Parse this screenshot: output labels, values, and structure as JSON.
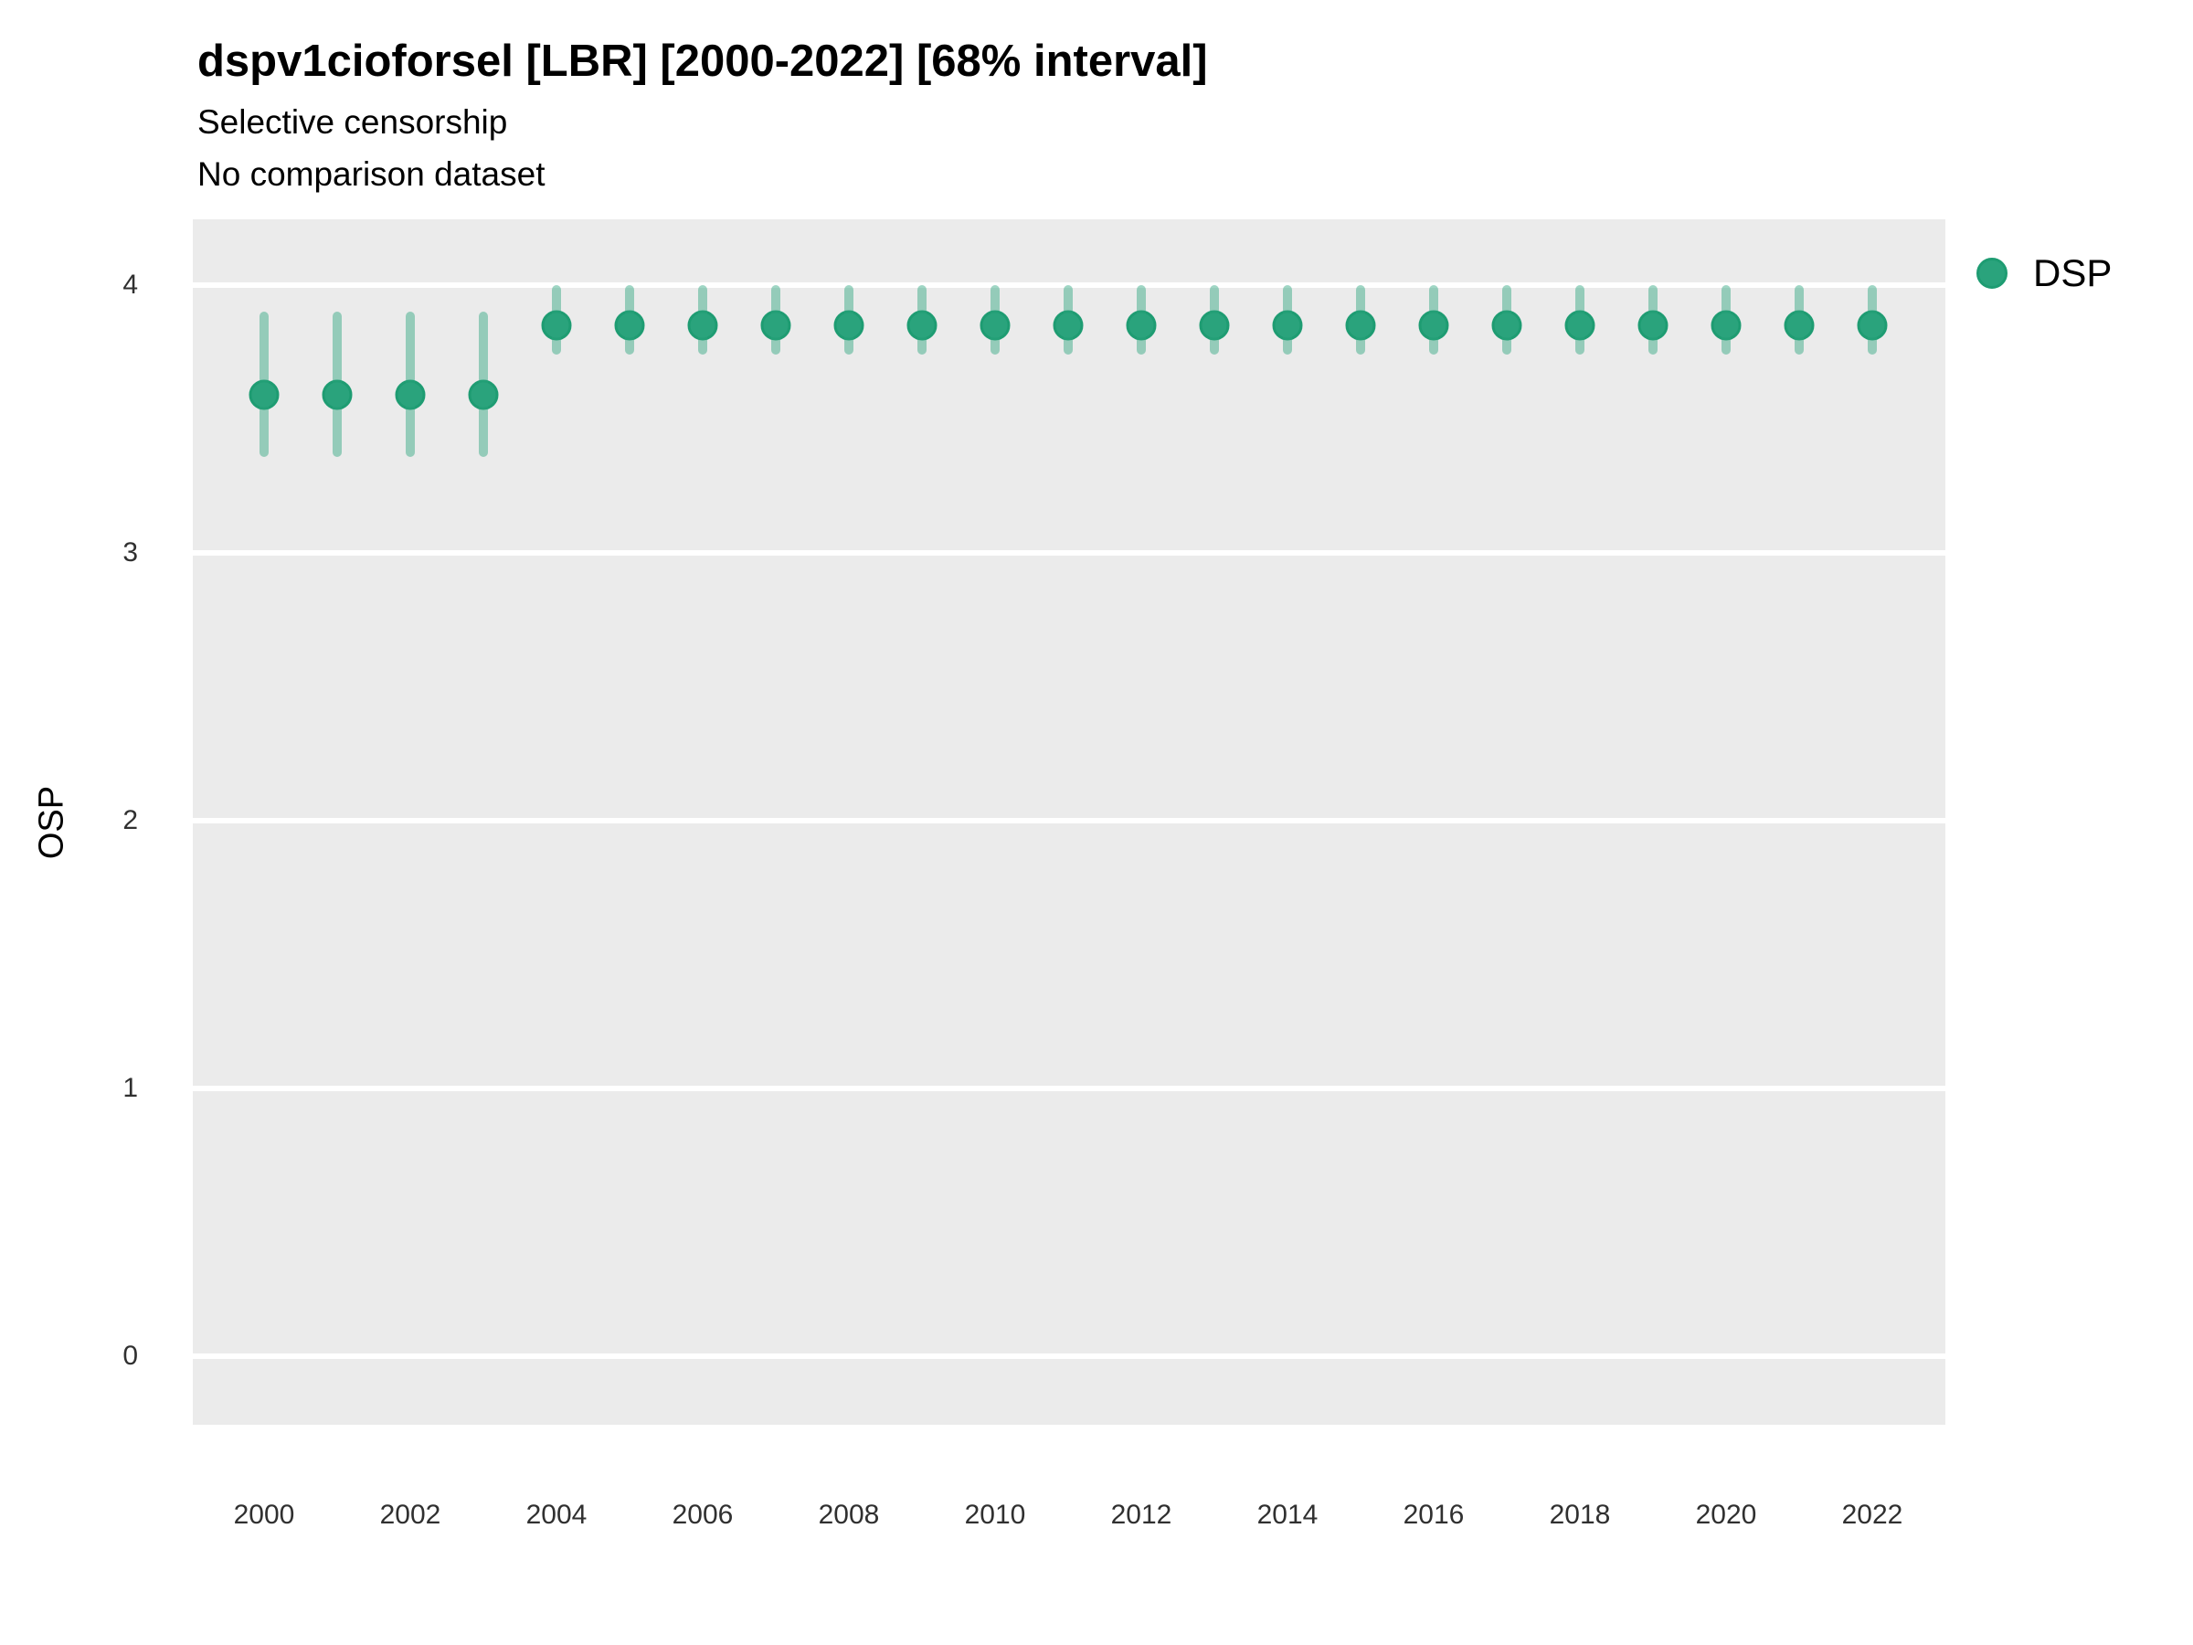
{
  "chart": {
    "title": "dspv1cioforsel [LBR] [2000-2022] [68% interval]",
    "subtitle_line1": "Selective censorship",
    "subtitle_line2": "No comparison dataset",
    "y_axis_title": "OSP",
    "legend_label": "DSP"
  },
  "chart_data": {
    "type": "scatter",
    "title": "dspv1cioforsel [LBR] [2000-2022] [68% interval]",
    "subtitle": [
      "Selective censorship",
      "No comparison dataset"
    ],
    "interval": "68%",
    "xlabel": "",
    "ylabel": "OSP",
    "ylim": [
      -0.26,
      4.25
    ],
    "yticks": [
      0,
      1,
      2,
      3,
      4
    ],
    "xticks": [
      2000,
      2002,
      2004,
      2006,
      2008,
      2010,
      2012,
      2014,
      2016,
      2018,
      2020,
      2022
    ],
    "grid": "horizontal-major-only",
    "panel_background": "#ebebeb",
    "gridline_color": "#ffffff",
    "legend_position": "right-top",
    "legend": [
      {
        "name": "DSP",
        "color": "#2aa37c",
        "border_color": "#1e9c72"
      }
    ],
    "series": [
      {
        "name": "DSP",
        "point_color": "#2aa37c",
        "point_border_color": "#1e9c72",
        "errorbar_color": "rgba(42,163,124,0.45)",
        "x": [
          2000,
          2001,
          2002,
          2003,
          2004,
          2005,
          2006,
          2007,
          2008,
          2009,
          2010,
          2011,
          2012,
          2013,
          2014,
          2015,
          2016,
          2017,
          2018,
          2019,
          2020,
          2021,
          2022
        ],
        "y": [
          3.59,
          3.59,
          3.59,
          3.59,
          3.85,
          3.85,
          3.85,
          3.85,
          3.85,
          3.85,
          3.85,
          3.85,
          3.85,
          3.85,
          3.85,
          3.85,
          3.85,
          3.85,
          3.85,
          3.85,
          3.85,
          3.85,
          3.85
        ],
        "lo": [
          3.36,
          3.36,
          3.36,
          3.36,
          3.74,
          3.74,
          3.74,
          3.74,
          3.74,
          3.74,
          3.74,
          3.74,
          3.74,
          3.74,
          3.74,
          3.74,
          3.74,
          3.74,
          3.74,
          3.74,
          3.74,
          3.74,
          3.74
        ],
        "hi": [
          3.9,
          3.9,
          3.9,
          3.9,
          4.0,
          4.0,
          4.0,
          4.0,
          4.0,
          4.0,
          4.0,
          4.0,
          4.0,
          4.0,
          4.0,
          4.0,
          4.0,
          4.0,
          4.0,
          4.0,
          4.0,
          4.0,
          4.0
        ]
      }
    ]
  }
}
